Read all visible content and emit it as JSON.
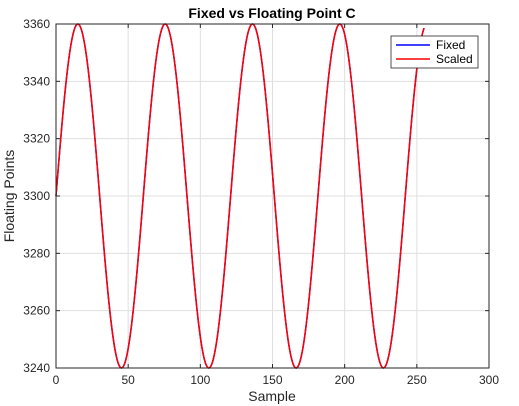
{
  "chart_data": {
    "type": "line",
    "title": "Fixed vs Floating Point C",
    "xlabel": "Sample",
    "ylabel": "Floating Points",
    "xlim": [
      0,
      300
    ],
    "ylim": [
      3240,
      3360
    ],
    "x_ticks": [
      0,
      50,
      100,
      150,
      200,
      250,
      300
    ],
    "y_ticks": [
      3240,
      3260,
      3280,
      3300,
      3320,
      3340,
      3360
    ],
    "grid": true,
    "legend_position": "top-right",
    "series": [
      {
        "name": "Fixed",
        "color": "#0000ff",
        "x_start": 0,
        "x_end": 255,
        "offset": 3300,
        "amplitude": 60,
        "period": 60.5,
        "phase": 0
      },
      {
        "name": "Scaled",
        "color": "#ff0000",
        "x_start": 0,
        "x_end": 255,
        "offset": 3300,
        "amplitude": 60,
        "period": 60.5,
        "phase": 0
      }
    ]
  }
}
